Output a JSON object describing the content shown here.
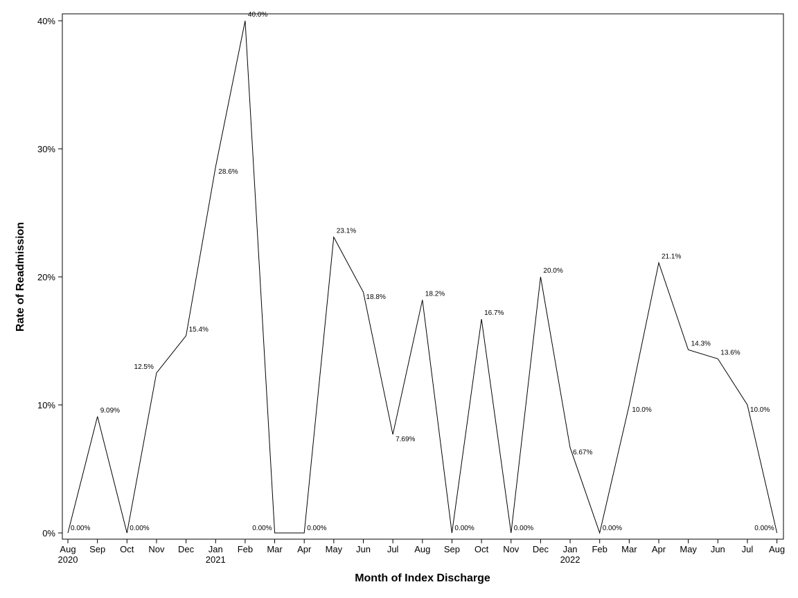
{
  "chart_data": {
    "type": "line",
    "title": "",
    "xlabel": "Month of Index Discharge",
    "ylabel": "Rate of Readmission",
    "ylim": [
      0,
      40
    ],
    "yticks": [
      "0%",
      "10%",
      "20%",
      "30%",
      "40%"
    ],
    "grid": false,
    "legend": "none",
    "categories": [
      "Aug",
      "Sep",
      "Oct",
      "Nov",
      "Dec",
      "Jan",
      "Feb",
      "Mar",
      "Apr",
      "May",
      "Jun",
      "Jul",
      "Aug",
      "Sep",
      "Oct",
      "Nov",
      "Dec",
      "Jan",
      "Feb",
      "Mar",
      "Apr",
      "May",
      "Jun",
      "Jul",
      "Aug"
    ],
    "year_labels": [
      "2020",
      "",
      "",
      "",
      "",
      "2021",
      "",
      "",
      "",
      "",
      "",
      "",
      "",
      "",
      "",
      "",
      "",
      "2022",
      "",
      "",
      "",
      "",
      "",
      "",
      ""
    ],
    "series": [
      {
        "values": [
          0,
          9.09,
          0,
          12.5,
          15.4,
          28.6,
          40.0,
          0,
          0,
          23.1,
          18.8,
          7.69,
          18.2,
          0,
          16.7,
          0,
          20.0,
          6.67,
          0,
          10.0,
          21.1,
          14.3,
          13.6,
          10.0,
          0
        ],
        "labels": [
          "0.00%",
          "9.09%",
          "0.00%",
          "12.5%",
          "15.4%",
          "28.6%",
          "40.0%",
          "0.00%",
          "0.00%",
          "23.1%",
          "18.8%",
          "7.69%",
          "18.2%",
          "0.00%",
          "16.7%",
          "0.00%",
          "20.0%",
          "6.67%",
          "0.00%",
          "10.0%",
          "21.1%",
          "14.3%",
          "13.6%",
          "10.0%",
          "0.00%"
        ],
        "color": "#000000"
      }
    ]
  }
}
